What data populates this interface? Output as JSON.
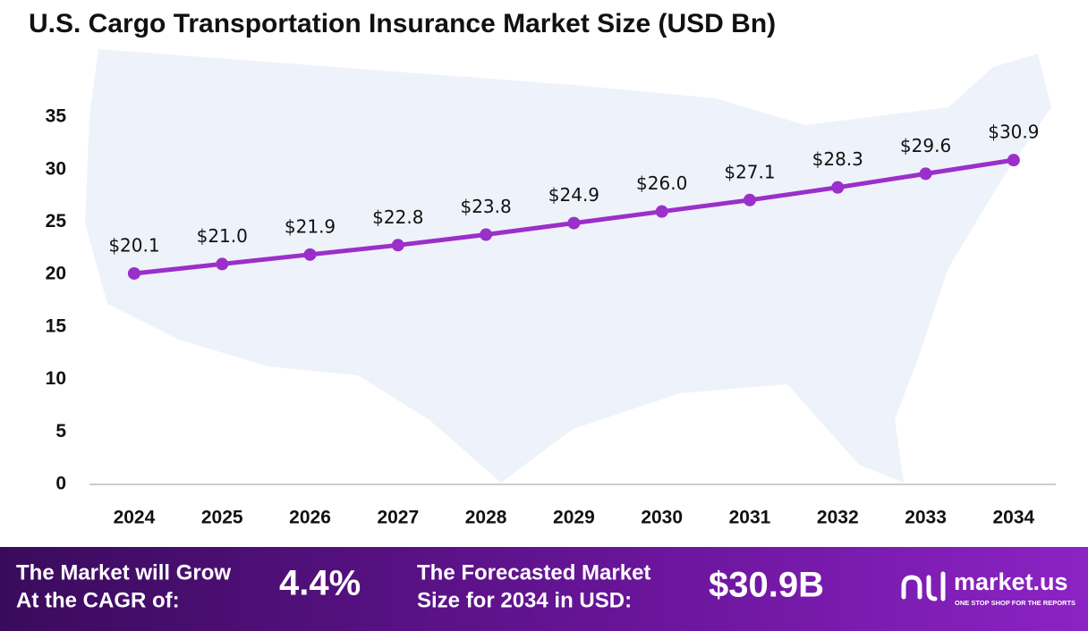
{
  "chart_data": {
    "type": "line",
    "title": "U.S. Cargo Transportation Insurance Market Size (USD Bn)",
    "categories": [
      "2024",
      "2025",
      "2026",
      "2027",
      "2028",
      "2029",
      "2030",
      "2031",
      "2032",
      "2033",
      "2034"
    ],
    "values": [
      20.1,
      21.0,
      21.9,
      22.8,
      23.8,
      24.9,
      26.0,
      27.1,
      28.3,
      29.6,
      30.9
    ],
    "value_labels": [
      "$20.1",
      "$21.0",
      "$21.9",
      "$22.8",
      "$23.8",
      "$24.9",
      "$26.0",
      "$27.1",
      "$28.3",
      "$29.6",
      "$30.9"
    ],
    "color": "#9b2fc9",
    "ylim": [
      0,
      35
    ],
    "yticks": [
      0,
      5,
      10,
      15,
      20,
      25,
      30,
      35
    ],
    "grid": false
  },
  "footer": {
    "cagr_label": [
      "The Market will Grow",
      "At the CAGR of:"
    ],
    "cagr_value": "4.4%",
    "forecast_label": [
      "The Forecasted Market",
      "Size for 2034 in USD:"
    ],
    "forecast_value": "$30.9B",
    "brand": "market.us",
    "tagline": "ONE STOP SHOP FOR THE REPORTS"
  }
}
